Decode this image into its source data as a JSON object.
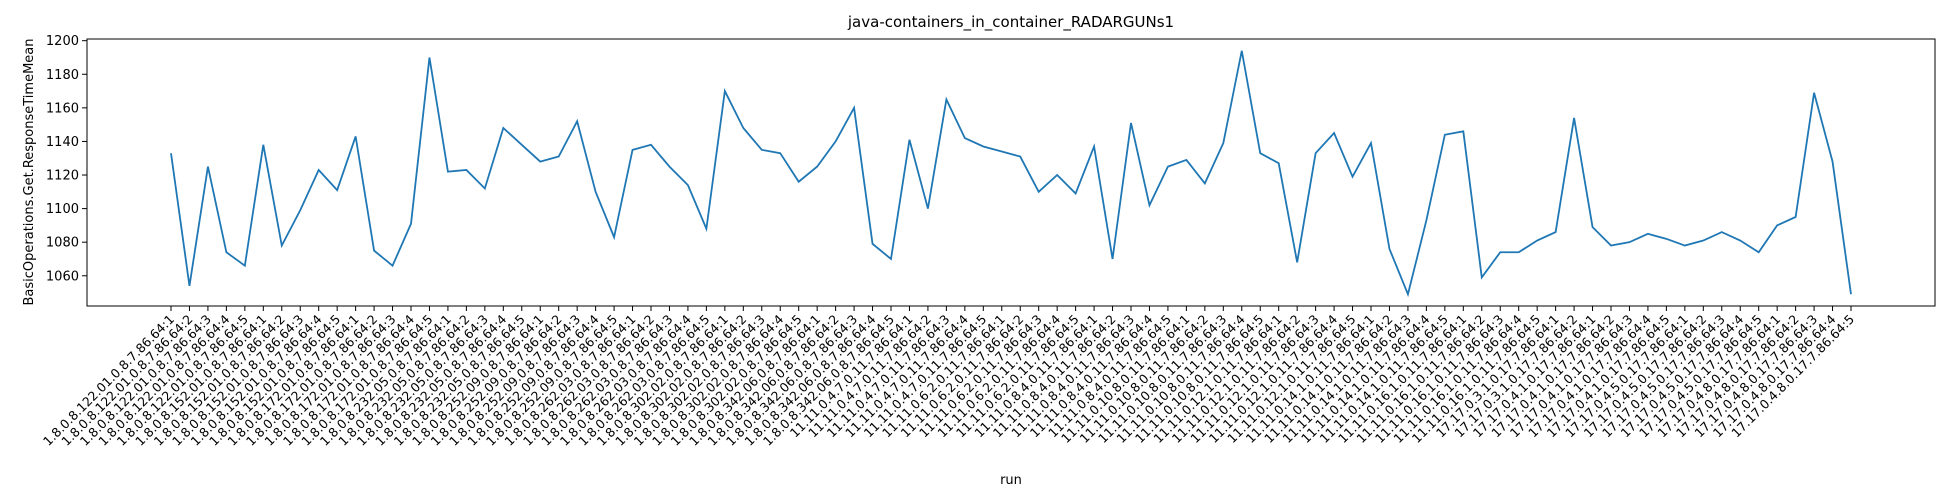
{
  "chart_data": {
    "type": "line",
    "title": "java-containers_in_container_RADARGUNs1",
    "xlabel": "run",
    "ylabel": "BasicOperations.Get.ResponseTimeMean",
    "categories": [
      "1.8.0.8.122.01.0.8.7.86.64:1",
      "1.8.0.8.122.01.0.8.7.86.64:2",
      "1.8.0.8.122.01.0.8.7.86.64:3",
      "1.8.0.8.122.01.0.8.7.86.64:4",
      "1.8.0.8.122.01.0.8.7.86.64:5",
      "1.8.0.8.152.01.0.8.7.86.64:1",
      "1.8.0.8.152.01.0.8.7.86.64:2",
      "1.8.0.8.152.01.0.8.7.86.64:3",
      "1.8.0.8.152.01.0.8.7.86.64:4",
      "1.8.0.8.152.01.0.8.7.86.64:5",
      "1.8.0.8.172.01.0.8.7.86.64:1",
      "1.8.0.8.172.01.0.8.7.86.64:2",
      "1.8.0.8.172.01.0.8.7.86.64:3",
      "1.8.0.8.172.01.0.8.7.86.64:4",
      "1.8.0.8.172.01.0.8.7.86.64:5",
      "1.8.0.8.232.05.0.8.7.86.64:1",
      "1.8.0.8.232.05.0.8.7.86.64:2",
      "1.8.0.8.232.05.0.8.7.86.64:3",
      "1.8.0.8.232.05.0.8.7.86.64:4",
      "1.8.0.8.232.05.0.8.7.86.64:5",
      "1.8.0.8.252.09.0.8.7.86.64:1",
      "1.8.0.8.252.09.0.8.7.86.64:2",
      "1.8.0.8.252.09.0.8.7.86.64:3",
      "1.8.0.8.252.09.0.8.7.86.64:4",
      "1.8.0.8.252.09.0.8.7.86.64:5",
      "1.8.0.8.262.03.0.8.7.86.64:1",
      "1.8.0.8.262.03.0.8.7.86.64:2",
      "1.8.0.8.262.03.0.8.7.86.64:3",
      "1.8.0.8.262.03.0.8.7.86.64:4",
      "1.8.0.8.262.03.0.8.7.86.64:5",
      "1.8.0.8.302.02.0.8.7.86.64:1",
      "1.8.0.8.302.02.0.8.7.86.64:2",
      "1.8.0.8.302.02.0.8.7.86.64:3",
      "1.8.0.8.302.02.0.8.7.86.64:4",
      "1.8.0.8.302.02.0.8.7.86.64:5",
      "1.8.0.8.342.06.0.8.7.86.64:1",
      "1.8.0.8.342.06.0.8.7.86.64:2",
      "1.8.0.8.342.06.0.8.7.86.64:3",
      "1.8.0.8.342.06.0.8.7.86.64:4",
      "1.8.0.8.342.06.0.8.7.86.64:5",
      "11.11.0.4.7.0.11.7.86.64:1",
      "11.11.0.4.7.0.11.7.86.64:2",
      "11.11.0.4.7.0.11.7.86.64:3",
      "11.11.0.4.7.0.11.7.86.64:4",
      "11.11.0.4.7.0.11.7.86.64:5",
      "11.11.0.6.2.0.11.7.86.64:1",
      "11.11.0.6.2.0.11.7.86.64:2",
      "11.11.0.6.2.0.11.7.86.64:3",
      "11.11.0.6.2.0.11.7.86.64:4",
      "11.11.0.6.2.0.11.7.86.64:5",
      "11.11.0.8.4.0.11.7.86.64:1",
      "11.11.0.8.4.0.11.7.86.64:2",
      "11.11.0.8.4.0.11.7.86.64:3",
      "11.11.0.8.4.0.11.7.86.64:4",
      "11.11.0.8.4.0.11.7.86.64:5",
      "11.11.0.10.8.0.11.7.86.64:1",
      "11.11.0.10.8.0.11.7.86.64:2",
      "11.11.0.10.8.0.11.7.86.64:3",
      "11.11.0.10.8.0.11.7.86.64:4",
      "11.11.0.10.8.0.11.7.86.64:5",
      "11.11.0.12.1.0.11.7.86.64:1",
      "11.11.0.12.1.0.11.7.86.64:2",
      "11.11.0.12.1.0.11.7.86.64:3",
      "11.11.0.12.1.0.11.7.86.64:4",
      "11.11.0.12.1.0.11.7.86.64:5",
      "11.11.0.14.1.0.11.7.86.64:1",
      "11.11.0.14.1.0.11.7.86.64:2",
      "11.11.0.14.1.0.11.7.86.64:3",
      "11.11.0.14.1.0.11.7.86.64:4",
      "11.11.0.14.1.0.11.7.86.64:5",
      "11.11.0.16.1.0.11.7.86.64:1",
      "11.11.0.16.1.0.11.7.86.64:2",
      "11.11.0.16.1.0.11.7.86.64:3",
      "11.11.0.16.1.0.11.7.86.64:4",
      "11.11.0.16.1.0.11.7.86.64:5",
      "17.17.0.3.1.0.17.7.86.64:1",
      "17.17.0.3.1.0.17.7.86.64:2",
      "17.17.0.4.1.0.17.7.86.64:1",
      "17.17.0.4.1.0.17.7.86.64:2",
      "17.17.0.4.1.0.17.7.86.64:3",
      "17.17.0.4.1.0.17.7.86.64:4",
      "17.17.0.4.1.0.17.7.86.64:5",
      "17.17.0.4.5.0.17.7.86.64:1",
      "17.17.0.4.5.0.17.7.86.64:2",
      "17.17.0.4.5.0.17.7.86.64:3",
      "17.17.0.4.5.0.17.7.86.64:4",
      "17.17.0.4.5.0.17.7.86.64:5",
      "17.17.0.4.8.0.17.7.86.64:1",
      "17.17.0.4.8.0.17.7.86.64:2",
      "17.17.0.4.8.0.17.7.86.64:3",
      "17.17.0.4.8.0.17.7.86.64:4",
      "17.17.0.4.8.0.17.7.86.64:5"
    ],
    "values": [
      1133,
      1054,
      1125,
      1074,
      1066,
      1138,
      1078,
      1099,
      1123,
      1111,
      1143,
      1075,
      1066,
      1091,
      1190,
      1122,
      1123,
      1112,
      1148,
      1138,
      1128,
      1131,
      1152,
      1110,
      1083,
      1135,
      1138,
      1125,
      1114,
      1088,
      1170,
      1148,
      1135,
      1133,
      1116,
      1125,
      1140,
      1160,
      1079,
      1070,
      1141,
      1100,
      1165,
      1142,
      1137,
      1134,
      1131,
      1110,
      1120,
      1109,
      1137,
      1070,
      1151,
      1102,
      1125,
      1129,
      1115,
      1139,
      1194,
      1133,
      1127,
      1068,
      1133,
      1145,
      1119,
      1139,
      1076,
      1049,
      1093,
      1144,
      1146,
      1059,
      1074,
      1074,
      1081,
      1086,
      1154,
      1089,
      1078,
      1080,
      1085,
      1082,
      1078,
      1081,
      1086,
      1081,
      1074,
      1090,
      1095,
      1169,
      1128,
      1049
    ],
    "color": "#1f77b4",
    "ylim": [
      1042,
      1201
    ],
    "yticks": [
      1060,
      1080,
      1100,
      1120,
      1140,
      1160,
      1180,
      1200
    ]
  }
}
